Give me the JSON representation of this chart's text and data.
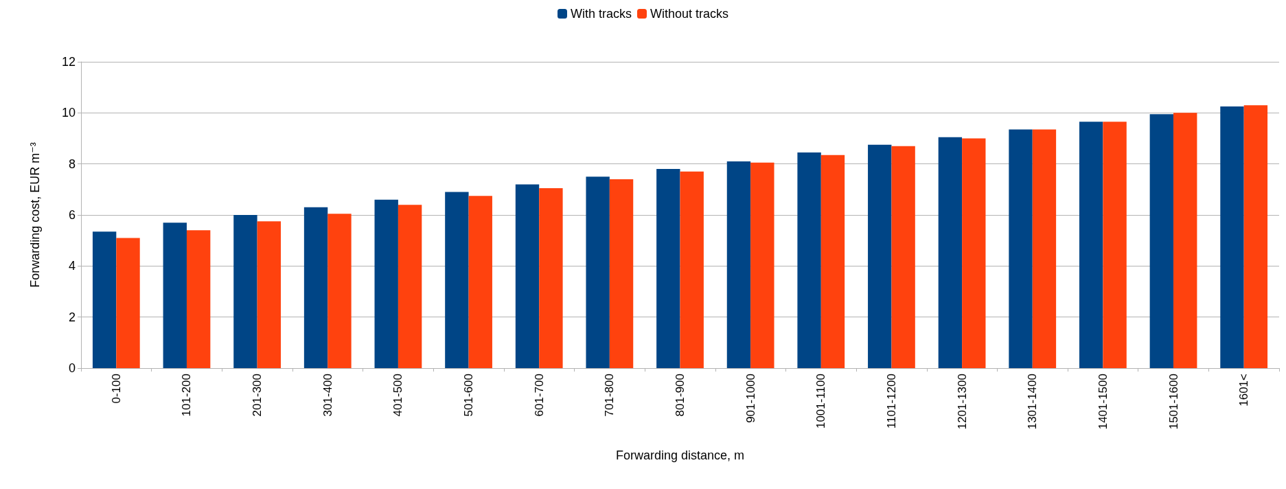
{
  "chart_data": {
    "type": "bar",
    "xlabel": "Forwarding distance, m",
    "ylabel": "Forwarding cost, EUR m⁻³",
    "categories": [
      "0-100",
      "101-200",
      "201-300",
      "301-400",
      "401-500",
      "501-600",
      "601-700",
      "701-800",
      "801-900",
      "901-1000",
      "1001-1100",
      "1101-1200",
      "1201-1300",
      "1301-1400",
      "1401-1500",
      "1501-1600",
      "1601<"
    ],
    "series": [
      {
        "name": "With tracks",
        "color": "#004586",
        "values": [
          5.35,
          5.7,
          6.0,
          6.3,
          6.6,
          6.9,
          7.2,
          7.5,
          7.8,
          8.1,
          8.45,
          8.75,
          9.05,
          9.35,
          9.65,
          9.95,
          10.25
        ]
      },
      {
        "name": "Without tracks",
        "color": "#ff420e",
        "values": [
          5.1,
          5.4,
          5.75,
          6.05,
          6.4,
          6.75,
          7.05,
          7.4,
          7.7,
          8.05,
          8.35,
          8.7,
          9.0,
          9.35,
          9.65,
          10.0,
          10.3
        ]
      }
    ],
    "ylim": [
      0,
      12
    ],
    "yticks": [
      0,
      2,
      4,
      6,
      8,
      10,
      12
    ],
    "grid": "y",
    "legend": "top"
  }
}
